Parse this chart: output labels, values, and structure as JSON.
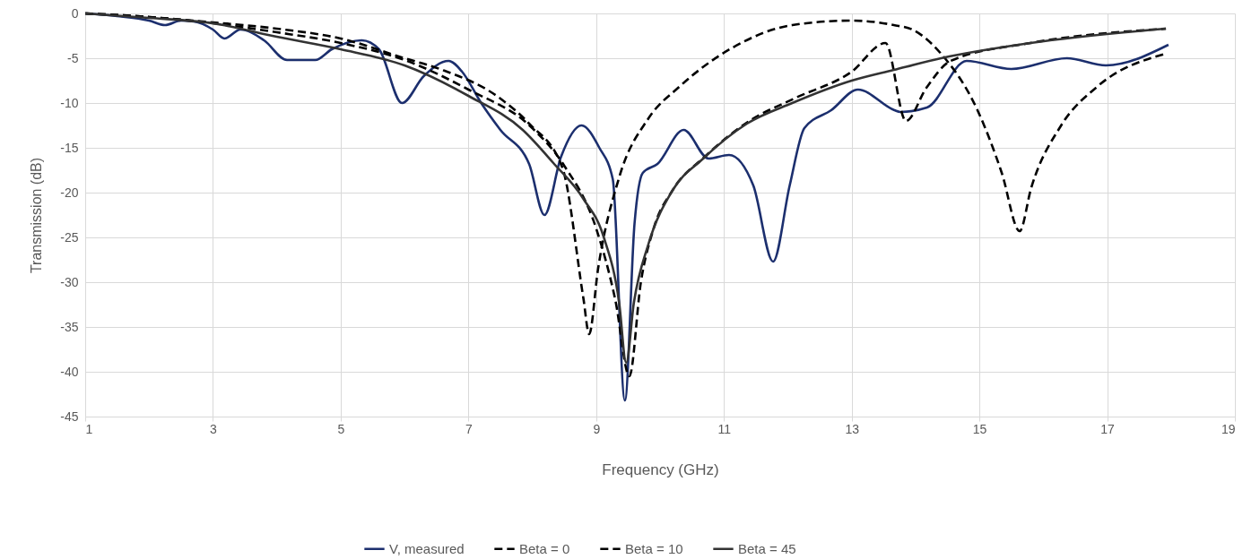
{
  "chart_data": {
    "type": "line",
    "xlabel": "Frequency (GHz)",
    "ylabel": "Transmission (dB)",
    "xlim": [
      1,
      19
    ],
    "xticks": [
      1,
      3,
      5,
      7,
      9,
      11,
      13,
      15,
      17,
      19
    ],
    "ylim": [
      -45,
      0
    ],
    "yticks": [
      -45,
      -40,
      -35,
      -30,
      -25,
      -20,
      -15,
      -10,
      -5,
      0
    ],
    "grid": true,
    "legend": "bottom",
    "marker": "none",
    "series": [
      {
        "name": "V, measured",
        "color": "#1c2f6e",
        "line_style": "solid",
        "x": [
          1,
          1.5,
          2,
          2.25,
          2.5,
          2.7,
          3,
          3.18,
          3.43,
          3.8,
          4.16,
          4.6,
          4.86,
          5.33,
          5.6,
          5.96,
          6.3,
          6.69,
          6.9,
          7.2,
          7.5,
          7.95,
          8.19,
          8.45,
          8.77,
          9.05,
          9.26,
          9.45,
          9.6,
          9.73,
          9.96,
          10.37,
          10.76,
          11.08,
          11.46,
          11.77,
          12.03,
          12.26,
          12.68,
          13.1,
          13.67,
          13.76,
          14.18,
          14.8,
          15.5,
          16.37,
          16.98,
          17.96
        ],
        "values": [
          0,
          -0.3,
          -0.8,
          -1.3,
          -0.8,
          -0.9,
          -1.8,
          -2.8,
          -1.8,
          -3,
          -5.2,
          -5.2,
          -4,
          -3,
          -4,
          -10,
          -7,
          -5.3,
          -6.5,
          -10,
          -13,
          -16.8,
          -22.5,
          -16,
          -12.5,
          -15,
          -18.5,
          -43.2,
          -23.5,
          -17.8,
          -16.8,
          -13,
          -16.2,
          -15.8,
          -19.2,
          -27.7,
          -19.2,
          -12.8,
          -10.8,
          -8.5,
          -10.8,
          -11,
          -10.5,
          -5.3,
          -6.2,
          -5,
          -5.8,
          -3.5
        ]
      },
      {
        "name": "Beta = 0",
        "color": "#000000",
        "line_style": "dashed",
        "x": [
          1,
          2,
          3,
          4,
          5,
          6,
          6.55,
          7.5,
          7.95,
          8.47,
          8.8,
          8.89,
          9.03,
          9.36,
          9.82,
          10.3,
          11.14,
          12.07,
          13.0,
          13.66,
          13.95,
          14.4,
          14.97,
          15.35,
          15.63,
          15.81,
          16.28,
          16.84,
          17.92
        ],
        "values": [
          0,
          -0.4,
          -1,
          -1.7,
          -2.8,
          -5,
          -6.2,
          -9.5,
          -12.3,
          -17.2,
          -31.8,
          -35.8,
          -28.5,
          -18.3,
          -11.7,
          -8.2,
          -3.8,
          -1.3,
          -0.8,
          -1.3,
          -1.8,
          -4.5,
          -10.8,
          -17.8,
          -24.3,
          -19.5,
          -12.5,
          -8.2,
          -4.5
        ]
      },
      {
        "name": "Beta = 10",
        "color": "#000000",
        "line_style": "dashed",
        "x": [
          1,
          2,
          3,
          4,
          5,
          6,
          7,
          8,
          8.5,
          9,
          9.3,
          9.52,
          9.7,
          9.9,
          10.2,
          10.7,
          11.4,
          12.1,
          13.0,
          13.53,
          13.85,
          14.17,
          14.55,
          15.8,
          17.92
        ],
        "values": [
          0,
          -0.4,
          -1.1,
          -2.1,
          -3.3,
          -5.2,
          -8.5,
          -12.8,
          -17,
          -24,
          -32,
          -40.5,
          -30,
          -24,
          -19.7,
          -16,
          -12,
          -9.5,
          -6.5,
          -3.3,
          -12,
          -8.3,
          -5.3,
          -3.3,
          -1.7
        ]
      },
      {
        "name": "Beta = 45",
        "color": "#333333",
        "line_style": "solid",
        "x": [
          1,
          2,
          3,
          4,
          5,
          6,
          7,
          7.85,
          8.33,
          8.8,
          9.12,
          9.36,
          9.47,
          9.59,
          9.82,
          10.2,
          10.66,
          11.36,
          12.07,
          13.0,
          13.66,
          14.4,
          15.8,
          17.92
        ],
        "values": [
          0,
          -0.5,
          -1.1,
          -2.6,
          -4,
          -5.8,
          -9.2,
          -13,
          -16.7,
          -20.7,
          -25,
          -32.3,
          -39,
          -32.3,
          -25.7,
          -19.7,
          -16.3,
          -12.3,
          -10,
          -7.5,
          -6.3,
          -5,
          -3.3,
          -1.7
        ]
      }
    ]
  }
}
